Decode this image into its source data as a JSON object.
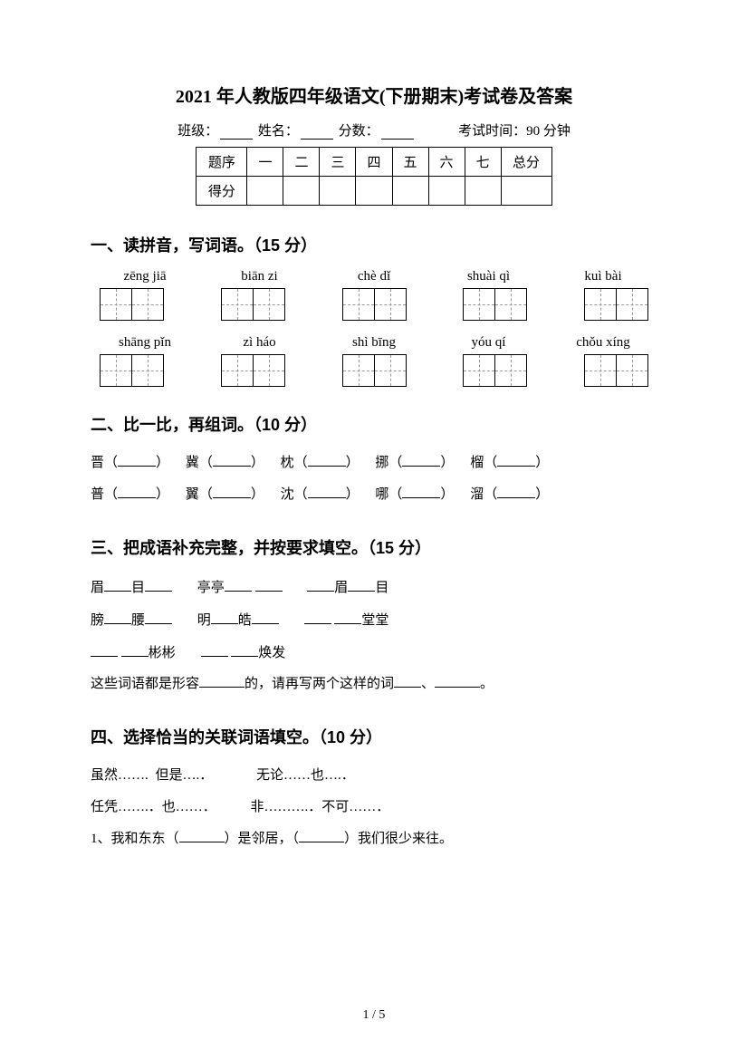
{
  "title": "2021 年人教版四年级语文(下册期末)考试卷及答案",
  "info": {
    "class_label": "班级：",
    "name_label": "姓名：",
    "score_label": "分数：",
    "time_label": "考试时间：90 分钟"
  },
  "score_table": {
    "row1": [
      "题序",
      "一",
      "二",
      "三",
      "四",
      "五",
      "六",
      "七",
      "总分"
    ],
    "row2_label": "得分"
  },
  "section1": {
    "heading": "一、读拼音，写词语。（15 分）",
    "pinyin_row1": [
      "zēng jiā",
      "biān zi",
      "chè dǐ",
      "shuài qì",
      "kuì bài"
    ],
    "pinyin_row2": [
      "shāng pǐn",
      "zì háo",
      "shì bīng",
      "yóu qí",
      "chǒu xíng"
    ]
  },
  "section2": {
    "heading": "二、比一比，再组词。（10 分）",
    "row1": [
      "晋",
      "冀",
      "枕",
      "挪",
      "榴"
    ],
    "row2": [
      "普",
      "翼",
      "沈",
      "哪",
      "溜"
    ]
  },
  "section3": {
    "heading": "三、把成语补充完整，并按要求填空。（15 分）",
    "line1_parts": [
      "眉",
      "目",
      "亭亭",
      "眉",
      "目"
    ],
    "line2_parts": [
      "膀",
      "腰",
      "明",
      "皓",
      "堂堂"
    ],
    "line3_parts": [
      "彬彬",
      "焕发"
    ],
    "summary": "这些词语都是形容",
    "summary2": "的，请再写两个这样的词",
    "summary3": "、",
    "summary4": "。"
  },
  "section4": {
    "heading": "四、选择恰当的关联词语填空。（10 分）",
    "conj_row1": [
      "虽然……. 但是….．",
      "无论……也….．"
    ],
    "conj_row2": [
      "任凭…….．也……．",
      "非……….．不可……．"
    ],
    "q1_prefix": "1、我和东东（",
    "q1_mid": "）是邻居，（",
    "q1_suffix": "）我们很少来往。"
  },
  "footer": "1 / 5"
}
